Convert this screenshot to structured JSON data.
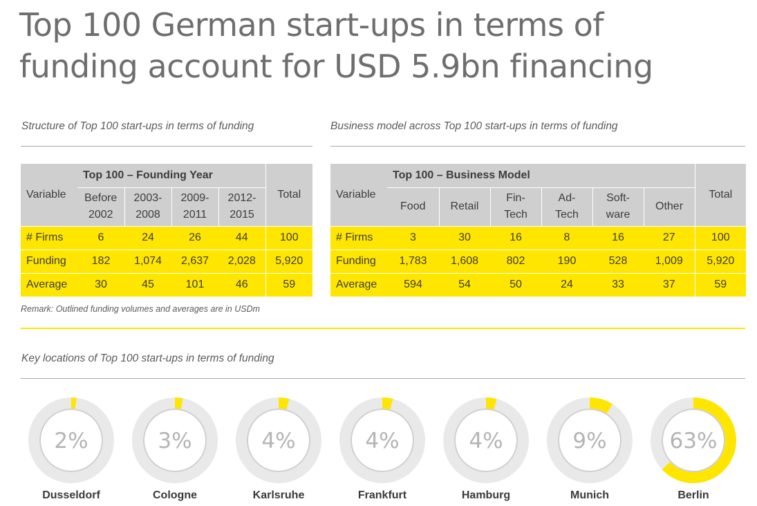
{
  "title": {
    "line1": "Top 100 German start-ups in terms of",
    "line2": "funding account for USD 5.9bn financing"
  },
  "left_panel": {
    "caption": "Structure of Top 100 start-ups in terms of funding",
    "group_header": "Top 100 – Founding Year",
    "variable_header": "Variable",
    "total_header": "Total",
    "columns": [
      {
        "l1": "Before",
        "l2": "2002"
      },
      {
        "l1": "2003-",
        "l2": "2008"
      },
      {
        "l1": "2009-",
        "l2": "2011"
      },
      {
        "l1": "2012-",
        "l2": "2015"
      }
    ],
    "rows": [
      {
        "label": "# Firms",
        "values": [
          "6",
          "24",
          "26",
          "44"
        ],
        "total": "100"
      },
      {
        "label": "Funding",
        "values": [
          "182",
          "1,074",
          "2,637",
          "2,028"
        ],
        "total": "5,920"
      },
      {
        "label": "Average",
        "values": [
          "30",
          "45",
          "101",
          "46"
        ],
        "total": "59"
      }
    ]
  },
  "right_panel": {
    "caption": "Business model across Top 100 start-ups in terms of funding",
    "group_header": "Top 100 – Business Model",
    "variable_header": "Variable",
    "total_header": "Total",
    "columns": [
      {
        "l1": "Food",
        "l2": ""
      },
      {
        "l1": "Retail",
        "l2": ""
      },
      {
        "l1": "Fin-",
        "l2": "Tech"
      },
      {
        "l1": "Ad-",
        "l2": "Tech"
      },
      {
        "l1": "Soft-",
        "l2": "ware"
      },
      {
        "l1": "Other",
        "l2": ""
      }
    ],
    "rows": [
      {
        "label": "# Firms",
        "values": [
          "3",
          "30",
          "16",
          "8",
          "16",
          "27"
        ],
        "total": "100"
      },
      {
        "label": "Funding",
        "values": [
          "1,783",
          "1,608",
          "802",
          "190",
          "528",
          "1,009"
        ],
        "total": "5,920"
      },
      {
        "label": "Average",
        "values": [
          "594",
          "54",
          "50",
          "24",
          "33",
          "37"
        ],
        "total": "59"
      }
    ]
  },
  "remark": "Remark: Outlined funding volumes and averages are in USDm",
  "locations": {
    "caption": "Key locations of Top 100 start-ups in terms of funding"
  },
  "colors": {
    "accent": "#ffe600",
    "header_gray": "#cfcfcf",
    "track_gray": "#e9e9e9",
    "value_gray": "#b4b4b4"
  },
  "chart_data": [
    {
      "type": "table",
      "title": "Structure of Top 100 start-ups in terms of funding",
      "columns": [
        "Before 2002",
        "2003-2008",
        "2009-2011",
        "2012-2015",
        "Total"
      ],
      "rows": [
        {
          "name": "# Firms",
          "values": [
            6,
            24,
            26,
            44,
            100
          ]
        },
        {
          "name": "Funding",
          "values": [
            182,
            1074,
            2637,
            2028,
            5920
          ]
        },
        {
          "name": "Average",
          "values": [
            30,
            45,
            101,
            46,
            59
          ]
        }
      ]
    },
    {
      "type": "table",
      "title": "Business model across Top 100 start-ups in terms of funding",
      "columns": [
        "Food",
        "Retail",
        "Fin-Tech",
        "Ad-Tech",
        "Soft-ware",
        "Other",
        "Total"
      ],
      "rows": [
        {
          "name": "# Firms",
          "values": [
            3,
            30,
            16,
            8,
            16,
            27,
            100
          ]
        },
        {
          "name": "Funding",
          "values": [
            1783,
            1608,
            802,
            190,
            528,
            1009,
            5920
          ]
        },
        {
          "name": "Average",
          "values": [
            594,
            54,
            50,
            24,
            33,
            37,
            59
          ]
        }
      ]
    },
    {
      "type": "pie",
      "title": "Key locations of Top 100 start-ups in terms of funding",
      "categories": [
        "Dusseldorf",
        "Cologne",
        "Karlsruhe",
        "Frankfurt",
        "Hamburg",
        "Munich",
        "Berlin"
      ],
      "values": [
        2,
        3,
        4,
        4,
        4,
        9,
        63
      ],
      "labels": [
        "2%",
        "3%",
        "4%",
        "4%",
        "4%",
        "9%",
        "63%"
      ]
    }
  ]
}
